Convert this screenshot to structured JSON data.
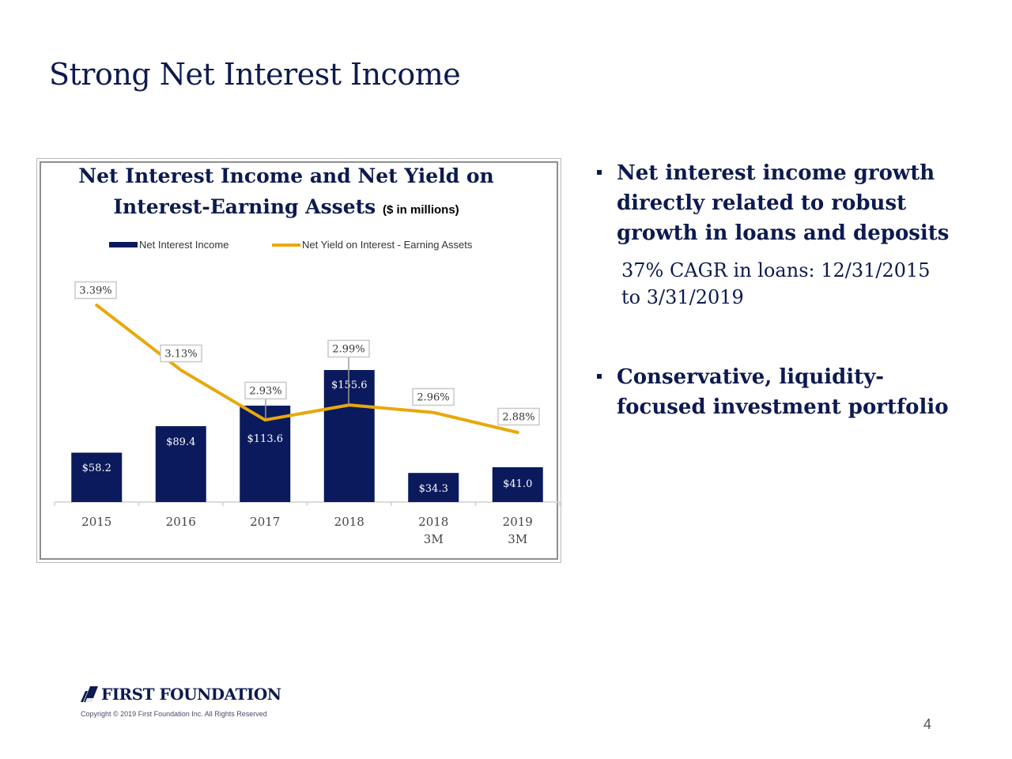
{
  "slide": {
    "title": "Strong Net Interest Income",
    "page_number": "4"
  },
  "chart_data": {
    "type": "bar",
    "title": "Net Interest Income and Net Yield on Interest-Earning Assets",
    "title_line1": "Net Interest Income and Net Yield on",
    "title_line2": "Interest-Earning Assets",
    "unit_note": "($ in millions)",
    "categories": [
      [
        "2015"
      ],
      [
        "2016"
      ],
      [
        "2017"
      ],
      [
        "2018"
      ],
      [
        "2018",
        "3M"
      ],
      [
        "2019",
        "3M"
      ]
    ],
    "series": [
      {
        "name": "Net Interest Income",
        "kind": "bar",
        "color": "#0a1a5c",
        "values": [
          58.2,
          89.4,
          113.6,
          155.6,
          34.3,
          41.0
        ],
        "labels": [
          "$58.2",
          "$89.4",
          "$113.6",
          "$155.6",
          "$34.3",
          "$41.0"
        ]
      },
      {
        "name": "Net Yield on Interest - Earning Assets",
        "kind": "line",
        "color": "#e8a80c",
        "values": [
          3.39,
          3.13,
          2.93,
          2.99,
          2.96,
          2.88
        ],
        "labels": [
          "3.39%",
          "3.13%",
          "2.93%",
          "2.99%",
          "2.96%",
          "2.88%"
        ]
      }
    ],
    "legend_position": "top",
    "grid": false
  },
  "bullets": [
    {
      "text": "Net interest income growth directly related to robust growth in loans and deposits",
      "sub": "37% CAGR in loans: 12/31/2015 to 3/31/2019"
    },
    {
      "text": "Conservative, liquidity-focused investment portfolio",
      "sub": ""
    }
  ],
  "footer": {
    "logo_text": "FIRST FOUNDATION",
    "logo_icon": "stripe-logo-icon",
    "copyright": "Copyright © 2019 First Foundation Inc. All Rights Reserved"
  },
  "colors": {
    "brand_navy": "#0d1a4f",
    "bar": "#0a1a5c",
    "line": "#e8a80c"
  }
}
